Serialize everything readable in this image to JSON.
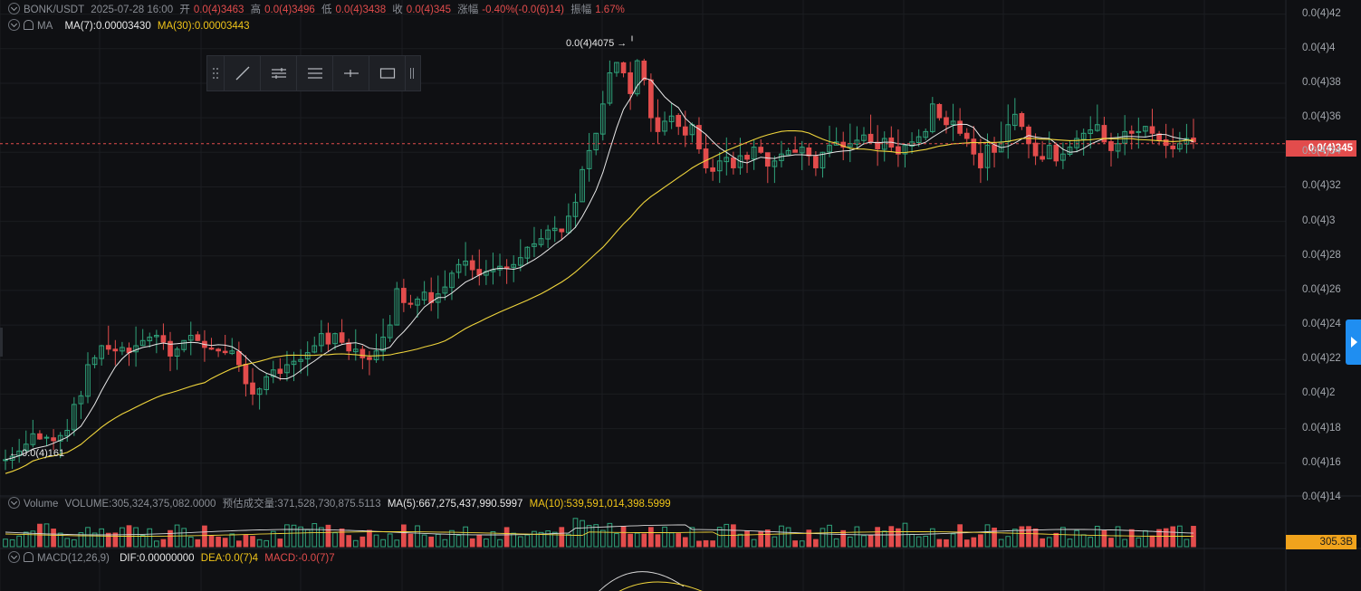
{
  "header": {
    "symbol": "BONK/USDT",
    "datetime": "2025-07-28 16:00",
    "open_label": "开",
    "open": "0.0(4)3463",
    "high_label": "高",
    "high": "0.0(4)3496",
    "low_label": "低",
    "low": "0.0(4)3438",
    "close_label": "收",
    "close": "0.0(4)345",
    "change_label": "涨幅",
    "change": "-0.40%(-0.0(6)14)",
    "amplitude_label": "振幅",
    "amplitude": "1.67%"
  },
  "ma_legend": {
    "name": "MA",
    "ma7": "MA(7):0.00003430",
    "ma30": "MA(30):0.00003443"
  },
  "volume_legend": {
    "name": "Volume",
    "volume": "VOLUME:305,324,375,082.0000",
    "estimated": "预估成交量:371,528,730,875.5113",
    "ma5": "MA(5):667,275,437,990.5997",
    "ma10": "MA(10):539,591,014,398.5999"
  },
  "macd_legend": {
    "name": "MACD(12,26,9)",
    "dif": "DIF:0.00000000",
    "dea": "DEA:0.0(7)4",
    "macd": "MACD:-0.0(7)7"
  },
  "annotations": {
    "high_marker": "0.0(4)4075 →",
    "low_marker": "← 0.0(4)161"
  },
  "price_tag": "0.0(4)345",
  "volume_tag": "305.3B",
  "toolbar": {
    "items": [
      "drag-handle",
      "trend-line-tool",
      "parallel-lines-tool",
      "horizontal-lines-tool",
      "horizontal-ray-tool",
      "rectangle-tool",
      "more-handle"
    ]
  },
  "colors": {
    "up": "#2fa37b",
    "down": "#e24c4c",
    "ma7": "#e8e8e8",
    "ma30": "#f0d53c",
    "background": "#0f1013"
  },
  "chart_data": {
    "type": "candlestick",
    "y_unit_note": "0.0(4)X means 0.0000X",
    "ylim": [
      1.41e-05,
      4.24e-05
    ],
    "y_tick_labels": [
      "0.0(4)42",
      "0.0(4)4",
      "0.0(4)38",
      "0.0(4)36",
      "0.0(4)34",
      "0.0(4)32",
      "0.0(4)3",
      "0.0(4)28",
      "0.0(4)26",
      "0.0(4)24",
      "0.0(4)22",
      "0.0(4)2",
      "0.0(4)18",
      "0.0(4)16",
      "0.0(4)14"
    ],
    "y_ticks": [
      4.2e-05,
      4e-05,
      3.8e-05,
      3.6e-05,
      3.4e-05,
      3.2e-05,
      3e-05,
      2.8e-05,
      2.6e-05,
      2.4e-05,
      2.2e-05,
      2e-05,
      1.8e-05,
      1.6e-05,
      1.4e-05
    ],
    "candles_close_ratio_1e5": [
      1.62,
      1.64,
      1.67,
      1.71,
      1.77,
      1.74,
      1.75,
      1.73,
      1.76,
      1.79,
      1.94,
      1.99,
      2.17,
      2.21,
      2.28,
      2.26,
      2.25,
      2.27,
      2.24,
      2.28,
      2.31,
      2.33,
      2.34,
      2.3,
      2.22,
      2.26,
      2.31,
      2.34,
      2.31,
      2.27,
      2.26,
      2.25,
      2.24,
      2.25,
      2.17,
      2.06,
      2.0,
      2.03,
      2.1,
      2.14,
      2.12,
      2.17,
      2.19,
      2.2,
      2.24,
      2.28,
      2.35,
      2.29,
      2.35,
      2.3,
      2.25,
      2.26,
      2.21,
      2.2,
      2.25,
      2.33,
      2.4,
      2.61,
      2.53,
      2.52,
      2.55,
      2.59,
      2.53,
      2.58,
      2.62,
      2.7,
      2.75,
      2.77,
      2.72,
      2.69,
      2.71,
      2.72,
      2.74,
      2.73,
      2.75,
      2.79,
      2.85,
      2.87,
      2.9,
      2.95,
      2.96,
      2.94,
      3.03,
      3.11,
      3.3,
      3.41,
      3.51,
      3.68,
      3.86,
      3.92,
      3.86,
      3.74,
      3.93,
      3.82,
      3.6,
      3.52,
      3.58,
      3.61,
      3.55,
      3.5,
      3.56,
      3.42,
      3.31,
      3.29,
      3.35,
      3.37,
      3.31,
      3.38,
      3.36,
      3.43,
      3.4,
      3.32,
      3.35,
      3.39,
      3.41,
      3.4,
      3.43,
      3.38,
      3.31,
      3.4,
      3.44,
      3.46,
      3.43,
      3.45,
      3.47,
      3.5,
      3.46,
      3.42,
      3.48,
      3.43,
      3.39,
      3.44,
      3.46,
      3.49,
      3.52,
      3.68,
      3.6,
      3.56,
      3.58,
      3.51,
      3.48,
      3.39,
      3.31,
      3.44,
      3.4,
      3.46,
      3.56,
      3.62,
      3.55,
      3.45,
      3.38,
      3.36,
      3.44,
      3.35,
      3.39,
      3.43,
      3.48,
      3.51,
      3.53,
      3.56,
      3.46,
      3.41,
      3.45,
      3.52,
      3.51,
      3.52,
      3.55,
      3.51,
      3.47,
      3.44,
      3.42,
      3.45,
      3.48,
      3.46
    ],
    "high_marker": 4.075e-05,
    "low_marker": 1.61e-05,
    "last_price": 3.45e-05
  }
}
